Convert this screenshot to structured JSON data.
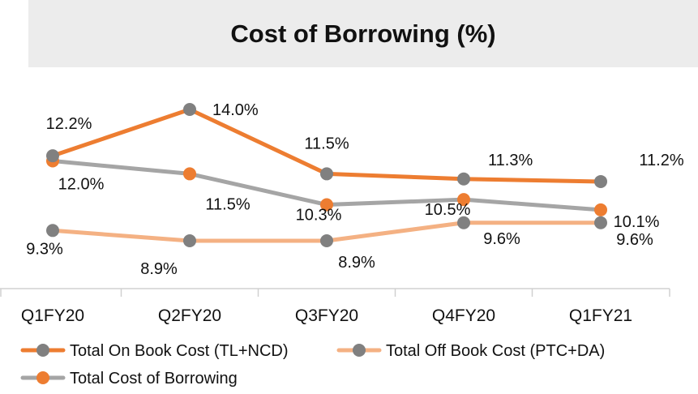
{
  "chart_data": {
    "type": "line",
    "title": "Cost of Borrowing (%)",
    "xlabel": "",
    "ylabel": "",
    "categories": [
      "Q1FY20",
      "Q2FY20",
      "Q3FY20",
      "Q4FY20",
      "Q1FY21"
    ],
    "ylim": [
      8,
      15
    ],
    "grid": false,
    "legend_position": "bottom",
    "series": [
      {
        "name": "Total On Book Cost (TL+NCD)",
        "values": [
          12.2,
          14.0,
          11.5,
          11.3,
          11.2
        ],
        "labels": [
          "12.2%",
          "14.0%",
          "11.5%",
          "11.3%",
          "11.2%"
        ],
        "line_color": "#ed7d31",
        "marker_color": "#808080"
      },
      {
        "name": "Total Off Book Cost (PTC+DA)",
        "values": [
          9.3,
          8.9,
          8.9,
          9.6,
          9.6
        ],
        "labels": [
          "9.3%",
          "8.9%",
          "8.9%",
          "9.6%",
          "9.6%"
        ],
        "line_color": "#f4b183",
        "marker_color": "#808080"
      },
      {
        "name": "Total Cost of Borrowing",
        "values": [
          12.0,
          11.5,
          10.3,
          10.5,
          10.1
        ],
        "labels": [
          "12.0%",
          "11.5%",
          "10.3%",
          "10.5%",
          "10.1%"
        ],
        "line_color": "#a5a5a5",
        "marker_color": "#ed7d31"
      }
    ]
  }
}
